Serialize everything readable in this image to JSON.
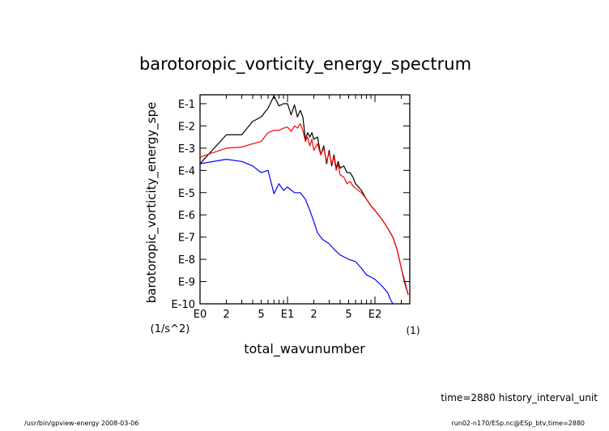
{
  "chart_data": {
    "type": "line",
    "title": "barotoropic_vorticity_energy_spectrum",
    "xlabel": "total_wavunumber",
    "xunit": "(1)",
    "ylabel": "barotoropic_vorticity_energy_spe",
    "yunit": "(1/s^2)",
    "x_scale": "log",
    "y_scale": "log",
    "xlim": [
      1,
      250
    ],
    "ylim_exponent": [
      -10,
      -0.6
    ],
    "x_ticks": [
      {
        "value": 1,
        "label": "E0"
      },
      {
        "value": 2,
        "label": "2"
      },
      {
        "value": 5,
        "label": "5"
      },
      {
        "value": 10,
        "label": "E1"
      },
      {
        "value": 20,
        "label": "2"
      },
      {
        "value": 50,
        "label": "5"
      },
      {
        "value": 100,
        "label": "E2"
      }
    ],
    "y_ticks": [
      {
        "value": -1,
        "label": "E-1"
      },
      {
        "value": -2,
        "label": "E-2"
      },
      {
        "value": -3,
        "label": "E-3"
      },
      {
        "value": -4,
        "label": "E-4"
      },
      {
        "value": -5,
        "label": "E-5"
      },
      {
        "value": -6,
        "label": "E-6"
      },
      {
        "value": -7,
        "label": "E-7"
      },
      {
        "value": -8,
        "label": "E-8"
      },
      {
        "value": -9,
        "label": "E-9"
      },
      {
        "value": -10,
        "label": "E-10"
      }
    ],
    "series": [
      {
        "color": "#000000",
        "points": [
          [
            1,
            -3.7
          ],
          [
            2,
            -2.4
          ],
          [
            3,
            -2.4
          ],
          [
            4,
            -1.8
          ],
          [
            5,
            -1.6
          ],
          [
            6,
            -1.2
          ],
          [
            7,
            -0.65
          ],
          [
            8,
            -1.1
          ],
          [
            9,
            -1.0
          ],
          [
            10,
            -1.0
          ],
          [
            11,
            -1.5
          ],
          [
            12,
            -1.05
          ],
          [
            13,
            -1.6
          ],
          [
            14,
            -1.3
          ],
          [
            15,
            -1.6
          ],
          [
            16,
            -2.6
          ],
          [
            17,
            -2.3
          ],
          [
            18,
            -2.5
          ],
          [
            19,
            -2.3
          ],
          [
            20,
            -2.6
          ],
          [
            22,
            -2.5
          ],
          [
            24,
            -3.3
          ],
          [
            26,
            -2.9
          ],
          [
            28,
            -3.7
          ],
          [
            30,
            -3.1
          ],
          [
            32,
            -3.8
          ],
          [
            34,
            -3.3
          ],
          [
            36,
            -3.9
          ],
          [
            38,
            -3.6
          ],
          [
            40,
            -3.9
          ],
          [
            44,
            -3.8
          ],
          [
            48,
            -4.1
          ],
          [
            52,
            -4.1
          ],
          [
            56,
            -4.3
          ],
          [
            60,
            -4.6
          ],
          [
            70,
            -4.9
          ],
          [
            80,
            -5.3
          ],
          [
            90,
            -5.6
          ],
          [
            100,
            -5.8
          ],
          [
            120,
            -6.2
          ],
          [
            140,
            -6.6
          ],
          [
            160,
            -7.0
          ],
          [
            180,
            -7.6
          ],
          [
            200,
            -8.4
          ],
          [
            220,
            -9.1
          ],
          [
            240,
            -9.6
          ]
        ]
      },
      {
        "color": "#ff0000",
        "points": [
          [
            1,
            -3.4
          ],
          [
            2,
            -3.0
          ],
          [
            3,
            -2.95
          ],
          [
            4,
            -2.8
          ],
          [
            5,
            -2.7
          ],
          [
            6,
            -2.3
          ],
          [
            7,
            -2.2
          ],
          [
            8,
            -2.2
          ],
          [
            9,
            -2.1
          ],
          [
            10,
            -2.05
          ],
          [
            11,
            -2.25
          ],
          [
            12,
            -2.0
          ],
          [
            13,
            -2.1
          ],
          [
            14,
            -1.9
          ],
          [
            15,
            -2.2
          ],
          [
            16,
            -2.7
          ],
          [
            17,
            -2.5
          ],
          [
            18,
            -2.9
          ],
          [
            19,
            -2.6
          ],
          [
            20,
            -3.1
          ],
          [
            22,
            -2.8
          ],
          [
            24,
            -3.3
          ],
          [
            26,
            -3.0
          ],
          [
            28,
            -3.6
          ],
          [
            30,
            -3.2
          ],
          [
            32,
            -3.7
          ],
          [
            34,
            -3.4
          ],
          [
            36,
            -4.0
          ],
          [
            38,
            -3.7
          ],
          [
            40,
            -4.2
          ],
          [
            44,
            -4.3
          ],
          [
            48,
            -4.6
          ],
          [
            52,
            -4.5
          ],
          [
            56,
            -4.7
          ],
          [
            60,
            -4.8
          ],
          [
            70,
            -5.0
          ],
          [
            80,
            -5.3
          ],
          [
            90,
            -5.6
          ],
          [
            100,
            -5.8
          ],
          [
            120,
            -6.2
          ],
          [
            140,
            -6.6
          ],
          [
            160,
            -7.0
          ],
          [
            180,
            -7.6
          ],
          [
            200,
            -8.4
          ],
          [
            220,
            -9.0
          ],
          [
            240,
            -9.6
          ]
        ]
      },
      {
        "color": "#0000ff",
        "points": [
          [
            1,
            -3.7
          ],
          [
            2,
            -3.5
          ],
          [
            3,
            -3.6
          ],
          [
            4,
            -3.8
          ],
          [
            5,
            -4.1
          ],
          [
            6,
            -4.0
          ],
          [
            7,
            -5.05
          ],
          [
            8,
            -4.6
          ],
          [
            9,
            -4.9
          ],
          [
            10,
            -4.75
          ],
          [
            12,
            -5.0
          ],
          [
            14,
            -5.0
          ],
          [
            16,
            -5.3
          ],
          [
            18,
            -5.8
          ],
          [
            20,
            -6.3
          ],
          [
            22,
            -6.8
          ],
          [
            25,
            -7.1
          ],
          [
            30,
            -7.3
          ],
          [
            35,
            -7.6
          ],
          [
            40,
            -7.8
          ],
          [
            50,
            -8.0
          ],
          [
            60,
            -8.1
          ],
          [
            70,
            -8.4
          ],
          [
            80,
            -8.7
          ],
          [
            90,
            -8.8
          ],
          [
            100,
            -8.9
          ],
          [
            120,
            -9.2
          ],
          [
            140,
            -9.5
          ],
          [
            150,
            -9.8
          ],
          [
            160,
            -10.0
          ]
        ]
      }
    ]
  },
  "footer": {
    "time_label": "time=2880 history_interval_unit",
    "left_note": "/usr/bin/gpview-energy  2008-03-06",
    "right_note": "run02-n170/ESp.nc@ESp_btv,time=2880"
  }
}
